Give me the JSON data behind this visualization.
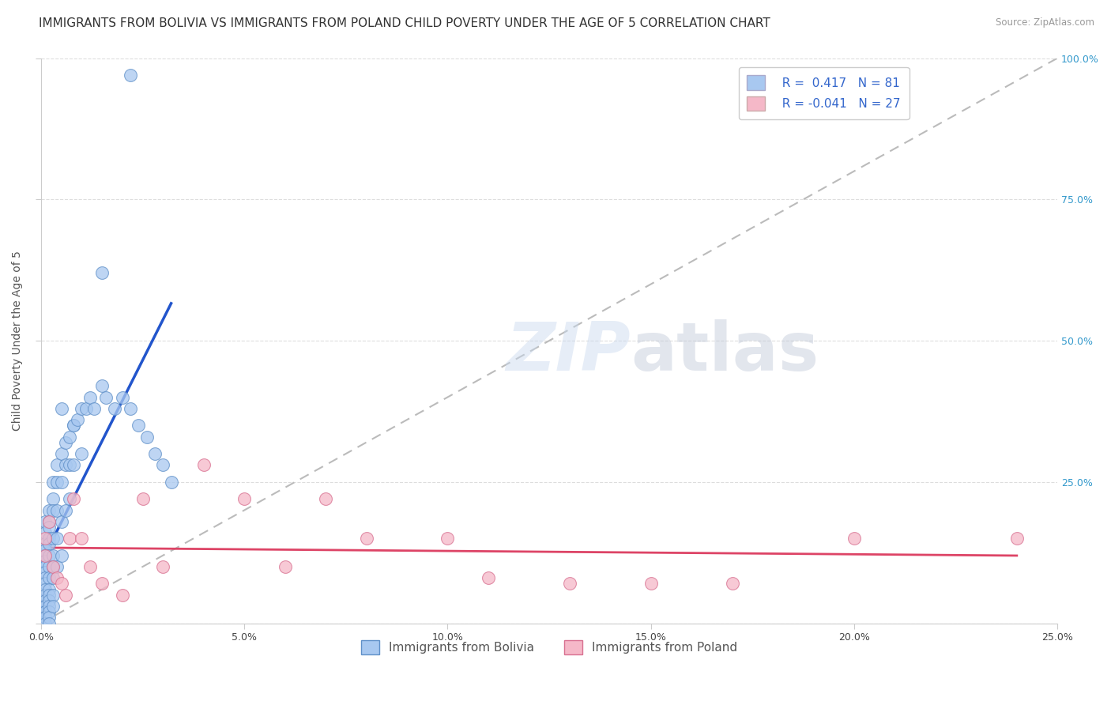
{
  "title": "IMMIGRANTS FROM BOLIVIA VS IMMIGRANTS FROM POLAND CHILD POVERTY UNDER THE AGE OF 5 CORRELATION CHART",
  "source": "Source: ZipAtlas.com",
  "ylabel": "Child Poverty Under the Age of 5",
  "xlim": [
    0,
    0.25
  ],
  "ylim": [
    0,
    1.0
  ],
  "bolivia_color": "#a8c8f0",
  "poland_color": "#f5b8c8",
  "bolivia_edge": "#6090c8",
  "poland_edge": "#d87090",
  "bolivia_R": 0.417,
  "bolivia_N": 81,
  "poland_R": -0.041,
  "poland_N": 27,
  "bolivia_line_color": "#2255cc",
  "poland_line_color": "#dd4466",
  "diagonal_line_color": "#bbbbbb",
  "background_color": "#ffffff",
  "grid_color": "#dddddd",
  "title_fontsize": 11,
  "axis_label_fontsize": 10,
  "tick_fontsize": 9,
  "legend_fontsize": 11,
  "bolivia_x": [
    0.022,
    0.015,
    0.005,
    0.008,
    0.001,
    0.001,
    0.001,
    0.001,
    0.001,
    0.001,
    0.001,
    0.001,
    0.001,
    0.001,
    0.001,
    0.001,
    0.001,
    0.001,
    0.001,
    0.001,
    0.001,
    0.001,
    0.001,
    0.001,
    0.002,
    0.002,
    0.002,
    0.002,
    0.002,
    0.002,
    0.002,
    0.002,
    0.002,
    0.002,
    0.002,
    0.002,
    0.002,
    0.002,
    0.002,
    0.003,
    0.003,
    0.003,
    0.003,
    0.003,
    0.003,
    0.003,
    0.003,
    0.003,
    0.004,
    0.004,
    0.004,
    0.004,
    0.004,
    0.005,
    0.005,
    0.005,
    0.005,
    0.006,
    0.006,
    0.006,
    0.007,
    0.007,
    0.007,
    0.008,
    0.008,
    0.009,
    0.01,
    0.01,
    0.011,
    0.012,
    0.013,
    0.015,
    0.016,
    0.018,
    0.02,
    0.022,
    0.024,
    0.026,
    0.028,
    0.03,
    0.032
  ],
  "bolivia_y": [
    0.97,
    0.62,
    0.38,
    0.35,
    0.18,
    0.16,
    0.14,
    0.13,
    0.12,
    0.11,
    0.1,
    0.09,
    0.08,
    0.07,
    0.06,
    0.05,
    0.04,
    0.03,
    0.03,
    0.02,
    0.02,
    0.01,
    0.01,
    0.0,
    0.2,
    0.18,
    0.17,
    0.15,
    0.14,
    0.12,
    0.1,
    0.08,
    0.06,
    0.05,
    0.04,
    0.03,
    0.02,
    0.01,
    0.0,
    0.25,
    0.22,
    0.2,
    0.15,
    0.12,
    0.1,
    0.08,
    0.05,
    0.03,
    0.28,
    0.25,
    0.2,
    0.15,
    0.1,
    0.3,
    0.25,
    0.18,
    0.12,
    0.32,
    0.28,
    0.2,
    0.33,
    0.28,
    0.22,
    0.35,
    0.28,
    0.36,
    0.38,
    0.3,
    0.38,
    0.4,
    0.38,
    0.42,
    0.4,
    0.38,
    0.4,
    0.38,
    0.35,
    0.33,
    0.3,
    0.28,
    0.25
  ],
  "poland_x": [
    0.001,
    0.001,
    0.002,
    0.003,
    0.004,
    0.005,
    0.006,
    0.007,
    0.008,
    0.01,
    0.012,
    0.015,
    0.02,
    0.025,
    0.03,
    0.04,
    0.05,
    0.06,
    0.07,
    0.08,
    0.1,
    0.11,
    0.13,
    0.15,
    0.17,
    0.2,
    0.24
  ],
  "poland_y": [
    0.15,
    0.12,
    0.18,
    0.1,
    0.08,
    0.07,
    0.05,
    0.15,
    0.22,
    0.15,
    0.1,
    0.07,
    0.05,
    0.22,
    0.1,
    0.28,
    0.22,
    0.1,
    0.22,
    0.15,
    0.15,
    0.08,
    0.07,
    0.07,
    0.07,
    0.15,
    0.15
  ]
}
